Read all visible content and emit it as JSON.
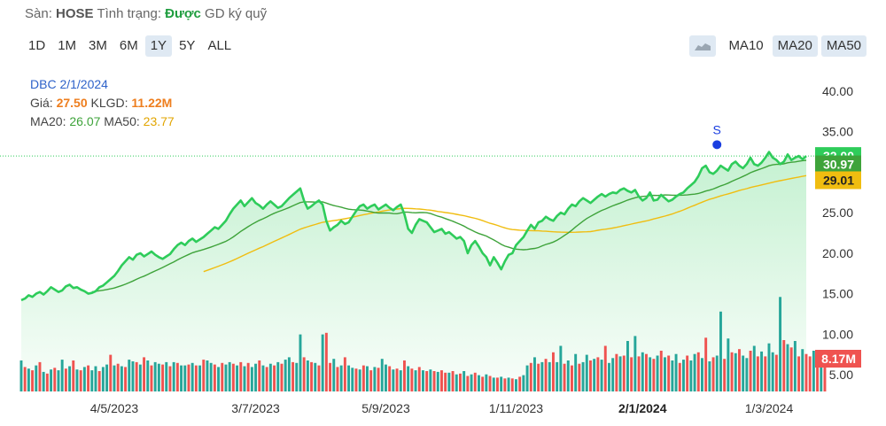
{
  "header": {
    "exchange_label": "Sàn:",
    "exchange_value": "HOSE",
    "status_label": "Tình trạng:",
    "status_value": "Được",
    "margin_label": "GD ký quỹ"
  },
  "ranges": [
    "1D",
    "1M",
    "3M",
    "6M",
    "1Y",
    "5Y",
    "ALL"
  ],
  "active_range": "1Y",
  "ma_buttons": {
    "ma10": "MA10",
    "ma20": "MA20",
    "ma50": "MA50"
  },
  "legend": {
    "ticker": "DBC",
    "date": "2/1/2024",
    "price_label": "Giá:",
    "price_value": "27.50",
    "volume_label": "KLGD:",
    "volume_value": "11.22M",
    "ma20_label": "MA20:",
    "ma20_value": "26.07",
    "ma50_label": "MA50:",
    "ma50_value": "23.77"
  },
  "colors": {
    "price_line": "#2ecc5a",
    "ma20": "#3ea33a",
    "ma50": "#f0bd10",
    "vol_up": "#26a69a",
    "vol_down": "#ef5350",
    "signal": "#1a3ee0"
  },
  "chart_data": {
    "type": "line",
    "title": "",
    "xlabel": "",
    "ylabel": "",
    "ylim": [
      5,
      40
    ],
    "y_ticks": [
      "40.00",
      "35.00",
      "30.00",
      "25.00",
      "20.00",
      "15.00",
      "10.00",
      "5.00"
    ],
    "x_tick_labels": [
      "4/5/2023",
      "3/7/2023",
      "5/9/2023",
      "1/11/2023",
      "2/1/2024",
      "1/3/2024"
    ],
    "x_tick_indices": [
      25,
      63,
      98,
      133,
      167,
      201
    ],
    "bold_x_tick": "2/1/2024",
    "price_badges": [
      {
        "name": "price",
        "value": "32.00",
        "color": "#2ecc5a"
      },
      {
        "name": "ma20",
        "value": "30.97",
        "color": "#3ea33a"
      },
      {
        "name": "ma50",
        "value": "29.01",
        "color": "#f0bd10"
      }
    ],
    "volume_badge": "8.17M",
    "signal_marker": {
      "label": "S",
      "index": 187,
      "price": 33.4
    },
    "price": [
      14.2,
      14.4,
      14.8,
      14.6,
      15.0,
      15.2,
      14.9,
      15.3,
      15.8,
      15.5,
      15.2,
      15.4,
      15.9,
      16.1,
      15.7,
      15.8,
      15.5,
      15.3,
      15.0,
      15.1,
      15.3,
      15.8,
      16.0,
      16.4,
      16.8,
      17.2,
      17.8,
      18.5,
      19.0,
      19.5,
      19.2,
      19.8,
      20.0,
      19.6,
      19.9,
      20.2,
      19.8,
      19.5,
      19.3,
      19.6,
      19.9,
      20.5,
      21.0,
      21.3,
      21.0,
      21.5,
      21.8,
      21.4,
      21.7,
      22.0,
      22.4,
      22.8,
      23.2,
      23.0,
      23.5,
      24.0,
      24.8,
      25.5,
      26.0,
      26.5,
      25.8,
      26.3,
      26.8,
      26.2,
      25.9,
      25.5,
      26.0,
      26.4,
      26.0,
      25.6,
      25.8,
      26.3,
      26.8,
      27.2,
      27.6,
      28.0,
      26.5,
      25.5,
      25.8,
      26.2,
      26.5,
      26.0,
      24.0,
      22.8,
      23.2,
      23.5,
      24.0,
      23.6,
      23.8,
      24.5,
      25.2,
      25.8,
      26.0,
      25.5,
      25.8,
      26.0,
      25.4,
      25.7,
      26.0,
      25.6,
      25.3,
      25.7,
      26.0,
      24.8,
      23.0,
      22.5,
      23.5,
      24.2,
      24.0,
      23.8,
      23.2,
      22.6,
      22.8,
      23.0,
      22.4,
      22.6,
      22.2,
      21.8,
      22.0,
      21.5,
      20.0,
      21.0,
      21.5,
      20.8,
      20.0,
      19.5,
      18.5,
      19.5,
      18.8,
      18.0,
      19.0,
      19.8,
      20.0,
      21.0,
      21.5,
      22.0,
      22.8,
      23.5,
      23.0,
      23.8,
      24.0,
      24.5,
      24.2,
      24.0,
      24.6,
      25.0,
      24.8,
      25.5,
      26.0,
      25.8,
      26.4,
      26.8,
      26.5,
      26.2,
      26.6,
      27.0,
      27.3,
      27.0,
      27.3,
      27.5,
      27.4,
      27.8,
      28.0,
      27.7,
      27.5,
      27.8,
      27.0,
      26.5,
      26.8,
      27.5,
      26.5,
      26.6,
      27.2,
      26.8,
      26.4,
      26.6,
      27.0,
      27.3,
      27.5,
      28.0,
      28.4,
      28.8,
      29.5,
      30.5,
      30.8,
      30.0,
      29.8,
      30.2,
      30.8,
      30.5,
      30.2,
      31.0,
      31.3,
      30.8,
      30.5,
      31.0,
      31.8,
      31.0,
      30.8,
      31.2,
      31.8,
      32.5,
      31.8,
      31.5,
      31.0,
      31.3,
      32.2,
      31.5,
      31.8,
      32.0,
      31.6,
      32.0
    ],
    "volume": [
      3.8,
      3.0,
      2.8,
      2.6,
      3.2,
      3.6,
      2.4,
      2.2,
      2.7,
      2.9,
      2.6,
      3.9,
      2.8,
      3.1,
      3.8,
      2.7,
      2.6,
      3.0,
      3.2,
      2.6,
      3.1,
      2.5,
      3.0,
      3.3,
      4.5,
      3.2,
      3.4,
      3.1,
      3.0,
      3.9,
      3.7,
      3.6,
      3.3,
      4.2,
      3.8,
      3.2,
      3.6,
      3.4,
      3.3,
      3.6,
      3.1,
      3.6,
      3.5,
      3.2,
      3.2,
      3.3,
      3.5,
      3.2,
      3.2,
      3.9,
      3.8,
      3.5,
      3.3,
      3.0,
      3.5,
      3.3,
      3.6,
      3.4,
      3.2,
      3.6,
      3.1,
      3.5,
      3.0,
      3.4,
      3.8,
      3.2,
      3.0,
      3.4,
      3.2,
      3.6,
      3.4,
      3.9,
      4.2,
      3.6,
      3.5,
      7.0,
      4.2,
      3.8,
      3.6,
      3.5,
      3.2,
      7.0,
      7.2,
      3.5,
      4.0,
      3.0,
      3.2,
      4.2,
      3.2,
      2.9,
      2.8,
      2.7,
      3.2,
      3.1,
      2.6,
      3.0,
      2.9,
      4.0,
      3.3,
      3.1,
      2.7,
      2.8,
      2.6,
      3.8,
      3.1,
      2.8,
      2.6,
      3.0,
      2.6,
      2.5,
      2.7,
      2.5,
      2.4,
      2.6,
      2.3,
      2.3,
      2.5,
      2.1,
      2.2,
      2.5,
      1.9,
      2.1,
      2.3,
      2.0,
      1.8,
      2.1,
      1.9,
      1.7,
      1.7,
      1.8,
      1.6,
      1.7,
      1.6,
      1.5,
      1.8,
      2.0,
      3.2,
      3.5,
      4.2,
      3.4,
      3.6,
      4.0,
      3.6,
      4.8,
      3.6,
      5.6,
      3.4,
      3.8,
      3.2,
      4.6,
      3.4,
      3.6,
      4.5,
      3.8,
      4.0,
      4.2,
      3.9,
      5.6,
      3.5,
      4.1,
      4.6,
      4.3,
      4.4,
      6.2,
      4.2,
      6.8,
      4.3,
      4.8,
      4.6,
      4.2,
      4.0,
      4.4,
      5.0,
      4.2,
      4.4,
      3.8,
      4.6,
      3.5,
      3.9,
      4.4,
      3.8,
      4.6,
      4.8,
      4.1,
      6.6,
      3.7,
      4.2,
      4.4,
      9.8,
      4.0,
      6.5,
      4.8,
      4.7,
      5.2,
      4.4,
      4.1,
      5.0,
      5.6,
      4.3,
      4.9,
      4.3,
      5.9,
      4.8,
      4.5,
      11.6,
      6.3,
      5.8,
      5.4,
      6.2,
      4.3,
      5.2,
      4.6,
      4.3,
      5.0,
      4.5,
      4.8,
      4.5
    ],
    "volume_direction": [
      1,
      -1,
      1,
      -1,
      1,
      -1,
      1,
      -1,
      1,
      -1,
      1,
      1,
      -1,
      1,
      -1,
      1,
      -1,
      1,
      -1,
      1,
      1,
      -1,
      1,
      1,
      -1,
      1,
      -1,
      1,
      -1,
      1,
      1,
      -1,
      1,
      -1,
      1,
      -1,
      1,
      1,
      -1,
      1,
      -1,
      1,
      -1,
      1,
      1,
      -1,
      1,
      -1,
      1,
      -1,
      1,
      1,
      -1,
      1,
      -1,
      1,
      1,
      -1,
      1,
      -1,
      1,
      -1,
      1,
      1,
      -1,
      1,
      -1,
      1,
      -1,
      1,
      -1,
      1,
      1,
      -1,
      1,
      1,
      -1,
      1,
      -1,
      1,
      -1,
      1,
      -1,
      -1,
      1,
      -1,
      1,
      -1,
      1,
      1,
      -1,
      1,
      -1,
      1,
      -1,
      1,
      -1,
      1,
      1,
      -1,
      1,
      -1,
      1,
      -1,
      1,
      -1,
      1,
      -1,
      1,
      -1,
      1,
      -1,
      1,
      -1,
      -1,
      1,
      -1,
      1,
      -1,
      1,
      -1,
      1,
      -1,
      1,
      -1,
      1,
      -1,
      1,
      -1,
      1,
      -1,
      1,
      -1,
      1,
      -1,
      1,
      1,
      -1,
      1,
      -1,
      1,
      -1,
      1,
      -1,
      1,
      1,
      -1,
      1,
      -1,
      1,
      -1,
      1,
      1,
      -1,
      1,
      -1,
      1,
      -1,
      1,
      1,
      -1,
      1,
      -1,
      1,
      -1,
      1,
      -1,
      1,
      -1,
      1,
      -1,
      1,
      -1,
      1,
      -1,
      1,
      1,
      -1,
      1,
      -1,
      1,
      1,
      -1,
      1,
      -1,
      1,
      -1,
      1,
      1,
      -1,
      1,
      -1,
      1,
      -1,
      1,
      1,
      -1,
      1,
      -1,
      1,
      -1,
      1,
      1,
      -1,
      1,
      -1,
      1,
      -1,
      1,
      -1,
      1,
      -1,
      -1,
      1,
      -1,
      1,
      -1,
      1,
      -1,
      1,
      -1,
      -1
    ]
  }
}
